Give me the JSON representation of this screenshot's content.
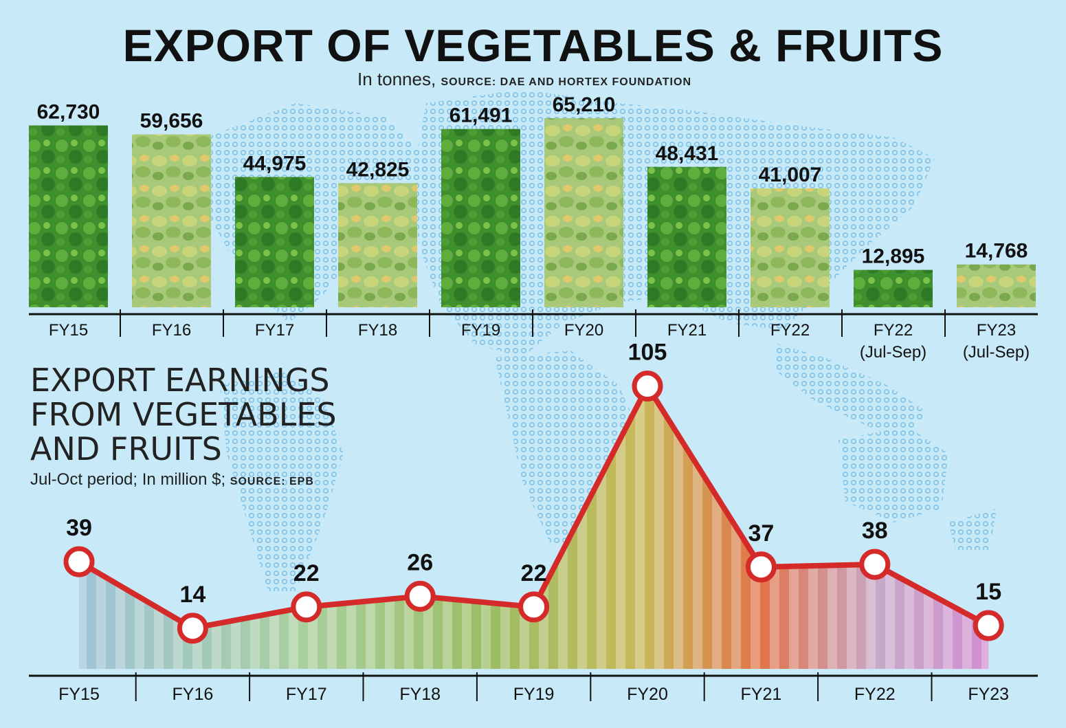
{
  "header": {
    "title": "EXPORT OF VEGETABLES & FRUITS",
    "subtitle_unit": "In tonnes,",
    "subtitle_source": "SOURCE: DAE AND HORTEX FOUNDATION"
  },
  "section2": {
    "title_line1": "EXPORT EARNINGS",
    "title_line2": "FROM VEGETABLES",
    "title_line3": "AND FRUITS",
    "subtitle_unit": "Jul-Oct period; In million $;",
    "subtitle_source": "SOURCE: EPB"
  },
  "colors": {
    "background": "#c8e9f8",
    "line": "#d42a2a",
    "bar_green": "#3f8f2e",
    "area_fill": "#9cc98a",
    "text": "#111111"
  },
  "chart_data": [
    {
      "type": "bar",
      "title": "EXPORT OF VEGETABLES & FRUITS",
      "unit": "In tonnes",
      "categories": [
        "FY15",
        "FY16",
        "FY17",
        "FY18",
        "FY19",
        "FY20",
        "FY21",
        "FY22",
        "FY22\n(Jul-Sep)",
        "FY23\n(Jul-Sep)"
      ],
      "values": [
        62730,
        59656,
        44975,
        42825,
        61491,
        65210,
        48431,
        41007,
        12895,
        14768
      ],
      "labels": [
        "62,730",
        "59,656",
        "44,975",
        "42,825",
        "61,491",
        "65,210",
        "48,431",
        "41,007",
        "12,895",
        "14,768"
      ],
      "grid": false
    },
    {
      "type": "area",
      "title": "EXPORT EARNINGS FROM VEGETABLES AND FRUITS",
      "unit": "Jul-Oct period; In million $",
      "categories": [
        "FY15",
        "FY16",
        "FY17",
        "FY18",
        "FY19",
        "FY20",
        "FY21",
        "FY22",
        "FY23"
      ],
      "values": [
        39,
        14,
        22,
        26,
        22,
        105,
        37,
        38,
        15
      ],
      "labels": [
        "39",
        "14",
        "22",
        "26",
        "22",
        "105",
        "37",
        "38",
        "15"
      ],
      "grid": false
    }
  ]
}
